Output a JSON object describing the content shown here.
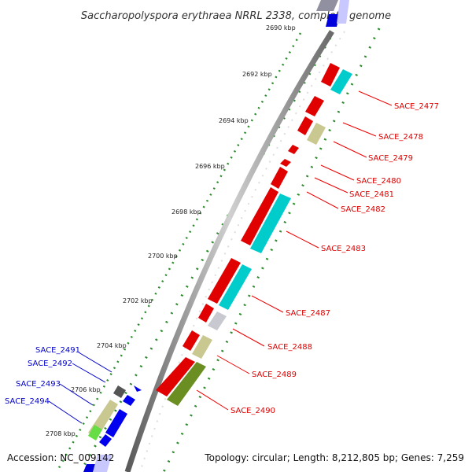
{
  "title": "Saccharopolyspora erythraea NRRL 2338, complete genome",
  "footer": {
    "accession": "Accession: NC_009142",
    "topology": "Topology: circular; Length: 8,212,805 bp; Genes: 7,259"
  },
  "colors": {
    "forward_label": "#dd0000",
    "reverse_label": "#0000cc",
    "backbone": "#888888",
    "tick": "#1a7a1a"
  },
  "kbp_labels": [
    "2690 kbp",
    "2692 kbp",
    "2694 kbp",
    "2696 kbp",
    "2698 kbp",
    "2700 kbp",
    "2702 kbp",
    "2704 kbp",
    "2706 kbp",
    "2708 kbp"
  ],
  "genes_forward": [
    {
      "label": "SACE_2477"
    },
    {
      "label": "SACE_2478"
    },
    {
      "label": "SACE_2479"
    },
    {
      "label": "SACE_2480"
    },
    {
      "label": "SACE_2481"
    },
    {
      "label": "SACE_2482"
    },
    {
      "label": "SACE_2483"
    },
    {
      "label": "SACE_2487"
    },
    {
      "label": "SACE_2488"
    },
    {
      "label": "SACE_2489"
    },
    {
      "label": "SACE_2490"
    }
  ],
  "genes_reverse": [
    {
      "label": "SACE_2491"
    },
    {
      "label": "SACE_2492"
    },
    {
      "label": "SACE_2493"
    },
    {
      "label": "SACE_2494"
    }
  ]
}
